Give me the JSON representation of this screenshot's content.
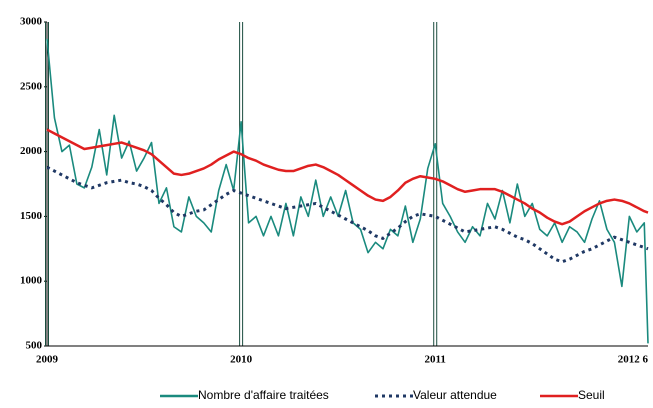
{
  "chart_data": {
    "type": "line",
    "x": [
      0,
      2,
      4,
      6,
      8,
      10,
      12,
      14,
      16,
      18,
      20,
      22,
      24,
      26,
      28,
      30,
      32,
      34,
      36,
      38,
      40,
      42,
      44,
      46,
      48,
      50,
      52,
      54,
      56,
      58,
      60,
      62,
      64,
      66,
      68,
      70,
      72,
      74,
      76,
      78,
      80,
      82,
      84,
      86,
      88,
      90,
      92,
      94,
      96,
      98,
      100,
      102,
      104,
      106,
      108,
      110,
      112,
      114,
      116,
      118,
      120,
      122,
      124,
      126,
      128,
      130,
      132,
      134,
      136,
      138,
      140,
      142,
      144,
      146,
      148,
      150,
      152,
      154,
      156,
      158,
      160,
      161
    ],
    "xlim": [
      0,
      161
    ],
    "xticks": [
      {
        "value": 0,
        "label": "2009"
      },
      {
        "value": 52,
        "label": "2010"
      },
      {
        "value": 104,
        "label": "2011"
      },
      {
        "value": 161,
        "label": "2012 6"
      }
    ],
    "ylim": [
      500,
      3000
    ],
    "yticks": [
      500,
      1000,
      1500,
      2000,
      2500,
      3000
    ],
    "series": [
      {
        "name": "Nombre d'affaire traitées",
        "color": "#1a8a7e",
        "style": "solid",
        "values": [
          2870,
          2260,
          2000,
          2050,
          1750,
          1720,
          1880,
          2170,
          1820,
          2280,
          1950,
          2080,
          1850,
          1950,
          2070,
          1600,
          1720,
          1420,
          1380,
          1650,
          1500,
          1450,
          1380,
          1700,
          1900,
          1700,
          2230,
          1450,
          1500,
          1350,
          1500,
          1350,
          1600,
          1350,
          1650,
          1500,
          1780,
          1500,
          1650,
          1500,
          1700,
          1450,
          1400,
          1220,
          1300,
          1250,
          1400,
          1350,
          1580,
          1300,
          1480,
          1870,
          2060,
          1600,
          1500,
          1380,
          1300,
          1420,
          1350,
          1600,
          1480,
          1700,
          1450,
          1750,
          1500,
          1600,
          1400,
          1350,
          1450,
          1300,
          1420,
          1380,
          1300,
          1480,
          1620,
          1400,
          1300,
          960,
          1500,
          1380,
          1450,
          520
        ]
      },
      {
        "name": "Valeur attendue",
        "color": "#1f3864",
        "style": "dotted",
        "values": [
          1880,
          1850,
          1820,
          1790,
          1760,
          1740,
          1720,
          1740,
          1760,
          1770,
          1780,
          1760,
          1750,
          1730,
          1700,
          1640,
          1590,
          1530,
          1500,
          1520,
          1540,
          1550,
          1590,
          1630,
          1670,
          1700,
          1680,
          1660,
          1640,
          1620,
          1600,
          1580,
          1560,
          1570,
          1580,
          1590,
          1600,
          1570,
          1540,
          1510,
          1480,
          1450,
          1420,
          1390,
          1350,
          1330,
          1370,
          1410,
          1460,
          1500,
          1520,
          1510,
          1500,
          1470,
          1440,
          1410,
          1380,
          1390,
          1400,
          1410,
          1420,
          1400,
          1370,
          1340,
          1320,
          1290,
          1250,
          1210,
          1170,
          1150,
          1170,
          1200,
          1230,
          1250,
          1280,
          1310,
          1340,
          1320,
          1300,
          1280,
          1260,
          1250
        ]
      },
      {
        "name": "Seuil",
        "color": "#e02020",
        "style": "solid",
        "values": [
          2170,
          2140,
          2110,
          2080,
          2050,
          2020,
          2030,
          2040,
          2050,
          2060,
          2070,
          2050,
          2030,
          2010,
          1980,
          1930,
          1880,
          1830,
          1820,
          1830,
          1850,
          1870,
          1900,
          1940,
          1970,
          2000,
          1980,
          1950,
          1930,
          1900,
          1880,
          1860,
          1850,
          1850,
          1870,
          1890,
          1900,
          1880,
          1850,
          1820,
          1780,
          1740,
          1700,
          1660,
          1630,
          1620,
          1650,
          1700,
          1760,
          1790,
          1810,
          1800,
          1790,
          1770,
          1740,
          1710,
          1690,
          1700,
          1710,
          1710,
          1710,
          1690,
          1660,
          1630,
          1600,
          1560,
          1530,
          1490,
          1460,
          1440,
          1460,
          1500,
          1540,
          1570,
          1600,
          1620,
          1630,
          1620,
          1600,
          1570,
          1540,
          1530
        ]
      }
    ]
  }
}
